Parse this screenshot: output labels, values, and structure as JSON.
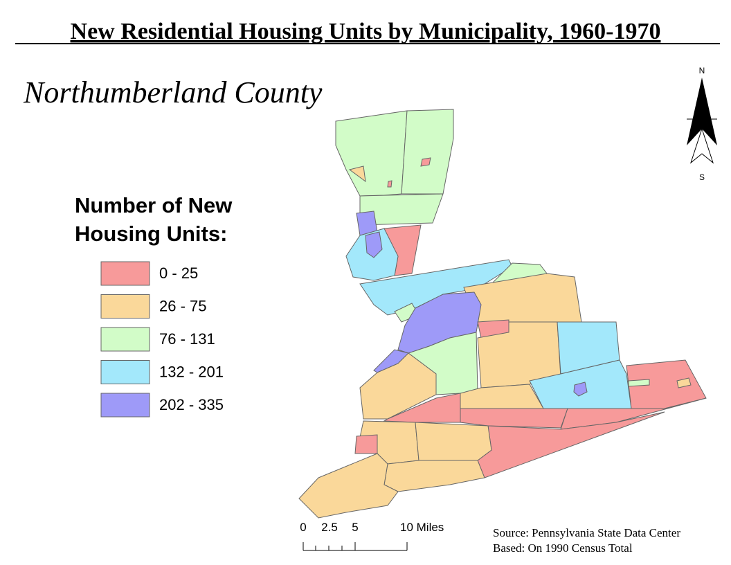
{
  "title": "New Residential Housing Units by Municipality, 1960-1970",
  "subtitle": "Northumberland County",
  "legend": {
    "title_lines": [
      "Number of New",
      "Housing Units:"
    ],
    "items": [
      {
        "label": "0 - 25",
        "color": "#f79a9a"
      },
      {
        "label": "26 - 75",
        "color": "#fad89a"
      },
      {
        "label": "76 - 131",
        "color": "#d2fcc8"
      },
      {
        "label": "132 - 201",
        "color": "#a3e8fb"
      },
      {
        "label": "202 - 335",
        "color": "#9e9af8"
      }
    ]
  },
  "north_arrow": {
    "north": "N",
    "south": "S"
  },
  "scale_bar": {
    "labels": [
      "0",
      "2.5",
      "5",
      "10 Miles"
    ]
  },
  "source_lines": [
    "Source: Pennsylvania State Data Center",
    "Based: On 1990 Census Total"
  ]
}
